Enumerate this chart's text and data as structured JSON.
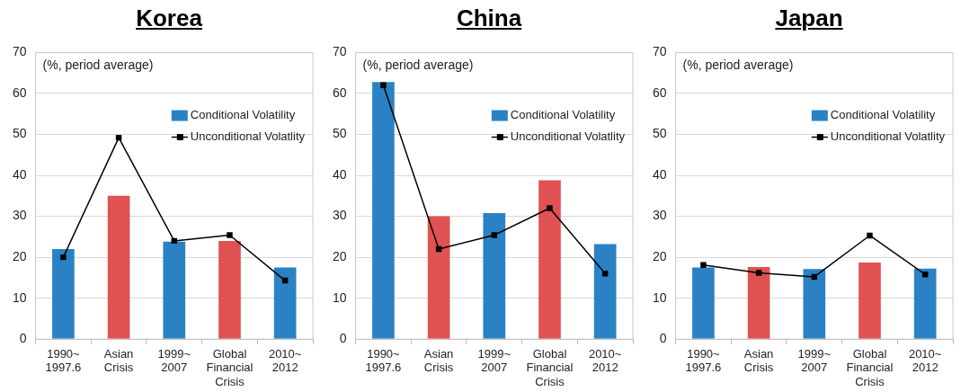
{
  "chart_data": [
    {
      "type": "bar",
      "title": "Korea",
      "categories": [
        "1990~ 1997.6",
        "Asian Crisis",
        "1999~ 2007",
        "Global Financial Crisis",
        "2010~ 2012"
      ],
      "series": [
        {
          "name": "Conditional Volatility",
          "color": "#2a82c4",
          "colors": [
            "#2a82c4",
            "#e05252",
            "#2a82c4",
            "#e05252",
            "#2a82c4"
          ],
          "values": [
            22,
            35,
            23.8,
            24,
            17.5
          ]
        },
        {
          "type": "line",
          "name": "Unconditional Volatlity",
          "color": "#000000",
          "values": [
            20,
            49.2,
            24,
            25.4,
            14.3
          ]
        }
      ],
      "ylim": [
        0,
        70
      ],
      "yticks": [
        0,
        10,
        20,
        30,
        40,
        50,
        60,
        70
      ],
      "grid": "y",
      "legend": "top right",
      "marker": "square",
      "line_style": "solid",
      "annotations": [
        "(%, period average)"
      ]
    },
    {
      "type": "bar",
      "title": "China",
      "categories": [
        "1990~ 1997.6",
        "Asian Crisis",
        "1999~ 2007",
        "Global Financial Crisis",
        "2010~ 2012"
      ],
      "series": [
        {
          "name": "Conditional Volatility",
          "color": "#2a82c4",
          "colors": [
            "#2a82c4",
            "#e05252",
            "#2a82c4",
            "#e05252",
            "#2a82c4"
          ],
          "values": [
            62.8,
            30,
            30.8,
            38.8,
            23.2
          ]
        },
        {
          "type": "line",
          "name": "Unconditional Volatlity",
          "color": "#000000",
          "values": [
            62,
            22,
            25.4,
            32,
            16
          ]
        }
      ],
      "ylim": [
        0,
        70
      ],
      "yticks": [
        0,
        10,
        20,
        30,
        40,
        50,
        60,
        70
      ],
      "grid": "y",
      "legend": "top right",
      "marker": "square",
      "line_style": "solid",
      "annotations": [
        "(%, period average)"
      ]
    },
    {
      "type": "bar",
      "title": "Japan",
      "categories": [
        "1990~ 1997.6",
        "Asian Crisis",
        "1999~ 2007",
        "Global Financial Crisis",
        "2010~ 2012"
      ],
      "series": [
        {
          "name": "Conditional Volatility",
          "color": "#2a82c4",
          "colors": [
            "#2a82c4",
            "#e05252",
            "#2a82c4",
            "#e05252",
            "#2a82c4"
          ],
          "values": [
            17.5,
            17.6,
            17.1,
            18.7,
            17.2
          ]
        },
        {
          "type": "line",
          "name": "Unconditional Volatlity",
          "color": "#000000",
          "values": [
            18.1,
            16.2,
            15.2,
            25.3,
            15.8
          ]
        }
      ],
      "ylim": [
        0,
        70
      ],
      "yticks": [
        0,
        10,
        20,
        30,
        40,
        50,
        60,
        70
      ],
      "grid": "y",
      "legend": "top right",
      "marker": "square",
      "line_style": "solid",
      "annotations": [
        "(%, period average)"
      ]
    }
  ]
}
